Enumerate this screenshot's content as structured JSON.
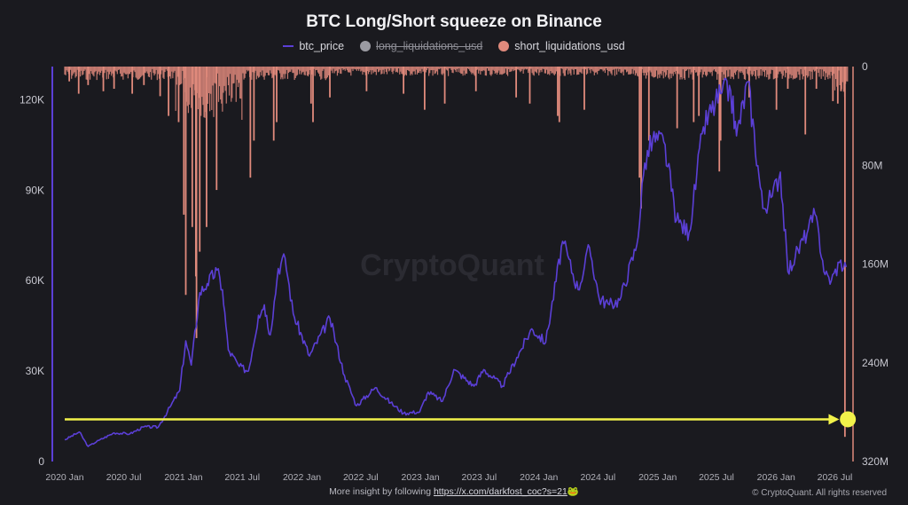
{
  "chart_data": {
    "type": "line+bar",
    "title": "BTC Long/Short squeeze on Binance",
    "legend": [
      {
        "name": "btc_price",
        "color": "#5b3fd6",
        "marker": "line",
        "enabled": true
      },
      {
        "name": "long_liquidations_usd",
        "color": "#9a9aa2",
        "marker": "dot",
        "enabled": false
      },
      {
        "name": "short_liquidations_usd",
        "color": "#e08a7c",
        "marker": "dot",
        "enabled": true
      }
    ],
    "left_axis": {
      "ticks": [
        "0",
        "30K",
        "60K",
        "90K",
        "120K"
      ],
      "values": [
        0,
        30000,
        60000,
        90000,
        120000
      ],
      "range": [
        0,
        131000
      ]
    },
    "right_axis": {
      "ticks": [
        "0",
        "80M",
        "160M",
        "240M",
        "320M"
      ],
      "values": [
        0,
        80,
        160,
        240,
        320
      ],
      "unit": "M USD",
      "inverted": true,
      "range": [
        0,
        320
      ]
    },
    "x_ticks": [
      "2020 Jan",
      "2020 Jul",
      "2021 Jan",
      "2021 Jul",
      "2022 Jan",
      "2022 Jul",
      "2023 Jan",
      "2023 Jul",
      "2024 Jan",
      "2024 Jul",
      "2025 Jan",
      "2025 Jul",
      "2026 Jan",
      "2026 Jul"
    ],
    "x_range": [
      "2020-01-01",
      "2026-08-15"
    ],
    "btc_price": {
      "name": "btc_price",
      "points": [
        [
          "2020-01-01",
          7200
        ],
        [
          "2020-02-15",
          9800
        ],
        [
          "2020-03-13",
          5000
        ],
        [
          "2020-04-15",
          7000
        ],
        [
          "2020-06-01",
          9500
        ],
        [
          "2020-07-20",
          9200
        ],
        [
          "2020-09-01",
          11500
        ],
        [
          "2020-10-15",
          11400
        ],
        [
          "2020-11-20",
          18000
        ],
        [
          "2020-12-20",
          23500
        ],
        [
          "2021-01-08",
          40000
        ],
        [
          "2021-01-25",
          32000
        ],
        [
          "2021-02-20",
          56000
        ],
        [
          "2021-03-15",
          59000
        ],
        [
          "2021-04-14",
          63500
        ],
        [
          "2021-05-01",
          57000
        ],
        [
          "2021-05-19",
          37000
        ],
        [
          "2021-06-22",
          31500
        ],
        [
          "2021-07-20",
          30000
        ],
        [
          "2021-08-20",
          48500
        ],
        [
          "2021-09-07",
          52000
        ],
        [
          "2021-09-25",
          42000
        ],
        [
          "2021-10-20",
          64000
        ],
        [
          "2021-11-10",
          67500
        ],
        [
          "2021-12-05",
          49000
        ],
        [
          "2022-01-24",
          35000
        ],
        [
          "2022-03-28",
          47500
        ],
        [
          "2022-05-12",
          28500
        ],
        [
          "2022-06-18",
          18500
        ],
        [
          "2022-08-15",
          24500
        ],
        [
          "2022-10-01",
          19500
        ],
        [
          "2022-11-10",
          16000
        ],
        [
          "2022-12-30",
          16500
        ],
        [
          "2023-01-25",
          23000
        ],
        [
          "2023-03-10",
          20000
        ],
        [
          "2023-04-14",
          30500
        ],
        [
          "2023-06-15",
          25000
        ],
        [
          "2023-07-15",
          30500
        ],
        [
          "2023-09-11",
          25000
        ],
        [
          "2023-10-25",
          34500
        ],
        [
          "2023-12-10",
          44000
        ],
        [
          "2024-01-22",
          39500
        ],
        [
          "2024-03-14",
          73000
        ],
        [
          "2024-05-01",
          57000
        ],
        [
          "2024-06-05",
          71000
        ],
        [
          "2024-07-05",
          54000
        ],
        [
          "2024-08-05",
          52000
        ],
        [
          "2024-09-06",
          53500
        ],
        [
          "2024-10-29",
          72000
        ],
        [
          "2024-11-22",
          99000
        ],
        [
          "2024-12-17",
          107000
        ],
        [
          "2025-01-20",
          106000
        ],
        [
          "2025-02-28",
          80000
        ],
        [
          "2025-04-08",
          76000
        ],
        [
          "2025-05-22",
          111000
        ],
        [
          "2025-07-14",
          122000
        ],
        [
          "2025-08-14",
          123000
        ],
        [
          "2025-09-01",
          108000
        ],
        [
          "2025-10-06",
          126000
        ],
        [
          "2025-11-21",
          84000
        ],
        [
          "2025-12-20",
          88000
        ],
        [
          "2026-01-14",
          96000
        ],
        [
          "2026-02-06",
          63000
        ],
        [
          "2026-03-01",
          68000
        ],
        [
          "2026-04-10",
          77000
        ],
        [
          "2026-05-01",
          82000
        ],
        [
          "2026-06-01",
          62000
        ],
        [
          "2026-06-20",
          60000
        ],
        [
          "2026-07-15",
          66000
        ],
        [
          "2026-08-05",
          64500
        ]
      ]
    },
    "short_liquidations_usd": {
      "name": "short_liquidations_usd",
      "unit": "M USD",
      "spikes": [
        [
          "2020-01-15",
          12
        ],
        [
          "2020-02-13",
          22
        ],
        [
          "2020-03-13",
          15
        ],
        [
          "2020-04-29",
          20
        ],
        [
          "2020-06-01",
          18
        ],
        [
          "2020-07-27",
          22
        ],
        [
          "2020-09-01",
          15
        ],
        [
          "2020-10-21",
          24
        ],
        [
          "2020-11-16",
          40
        ],
        [
          "2020-12-17",
          45
        ],
        [
          "2021-01-02",
          120
        ],
        [
          "2021-01-08",
          185
        ],
        [
          "2021-01-28",
          130
        ],
        [
          "2021-02-08",
          170
        ],
        [
          "2021-02-10",
          220
        ],
        [
          "2021-02-20",
          150
        ],
        [
          "2021-03-13",
          130
        ],
        [
          "2021-04-13",
          100
        ],
        [
          "2021-07-26",
          90
        ],
        [
          "2021-08-06",
          60
        ],
        [
          "2021-10-06",
          60
        ],
        [
          "2021-10-15",
          45
        ],
        [
          "2022-01-29",
          30
        ],
        [
          "2022-02-04",
          45
        ],
        [
          "2022-03-28",
          25
        ],
        [
          "2022-07-19",
          20
        ],
        [
          "2022-11-10",
          22
        ],
        [
          "2023-01-14",
          35
        ],
        [
          "2023-03-17",
          30
        ],
        [
          "2023-06-21",
          20
        ],
        [
          "2023-10-23",
          25
        ],
        [
          "2023-12-04",
          30
        ],
        [
          "2024-02-28",
          40
        ],
        [
          "2024-03-04",
          45
        ],
        [
          "2024-05-20",
          35
        ],
        [
          "2024-11-06",
          90
        ],
        [
          "2024-11-11",
          115
        ],
        [
          "2024-12-05",
          60
        ],
        [
          "2025-03-02",
          50
        ],
        [
          "2025-04-22",
          45
        ],
        [
          "2025-05-08",
          40
        ],
        [
          "2025-07-10",
          85
        ],
        [
          "2025-07-14",
          60
        ],
        [
          "2025-10-10",
          25
        ],
        [
          "2026-01-02",
          35
        ],
        [
          "2026-02-06",
          18
        ],
        [
          "2026-04-01",
          55
        ],
        [
          "2026-05-05",
          18
        ],
        [
          "2026-06-25",
          28
        ],
        [
          "2026-07-10",
          30
        ],
        [
          "2026-07-20",
          20
        ],
        [
          "2026-08-01",
          300
        ]
      ]
    },
    "watermark": "CryptoQuant",
    "annotation": {
      "type": "arrow",
      "color": "#f2f24a",
      "y_value": 14000,
      "from_x": "2020-01-01",
      "to_x": "2026-07-20"
    }
  },
  "footer": {
    "text": "More insight by following",
    "link": "https://x.com/darkfost_coc?s=21",
    "link_suffix": "🐸",
    "copyright": "© CryptoQuant. All rights reserved"
  }
}
